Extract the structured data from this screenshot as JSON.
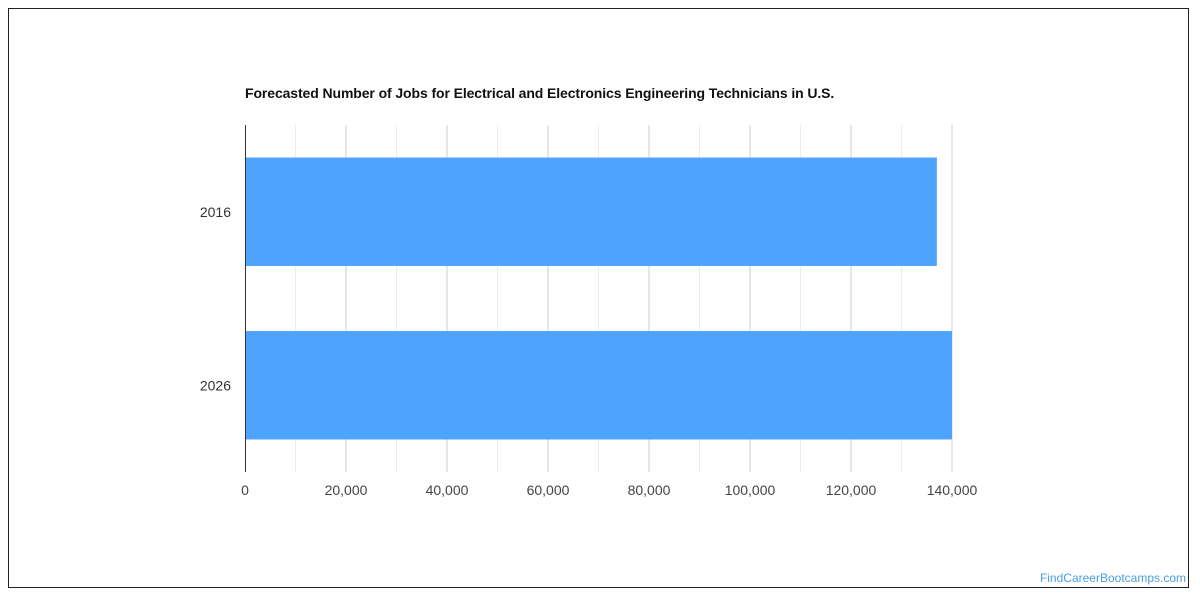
{
  "chart_data": {
    "type": "bar",
    "orientation": "horizontal",
    "title": "Forecasted Number of Jobs for Electrical and Electronics Engineering Technicians in U.S.",
    "categories": [
      "2016",
      "2026"
    ],
    "values": [
      137000,
      140000
    ],
    "xlim": [
      0,
      140000
    ],
    "x_ticks": [
      0,
      20000,
      40000,
      60000,
      80000,
      100000,
      120000,
      140000
    ],
    "x_tick_labels": [
      "0",
      "20,000",
      "40,000",
      "60,000",
      "80,000",
      "100,000",
      "120,000",
      "140,000"
    ],
    "xlabel": "",
    "ylabel": "",
    "grid": true,
    "bar_color": "#4ea3ff"
  },
  "watermark": "FindCareerBootcamps.com"
}
